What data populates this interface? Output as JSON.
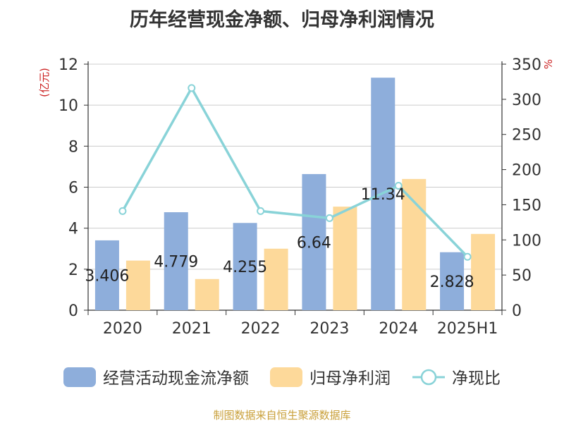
{
  "title": "历年经营现金净额、归母净利润情况",
  "source": "制图数据来自恒生聚源数据库",
  "chart_data": {
    "type": "bar",
    "categories": [
      "2020",
      "2021",
      "2022",
      "2023",
      "2024",
      "2025H1"
    ],
    "y_left": {
      "label": "(亿元)",
      "min": 0,
      "max": 12,
      "ticks": [
        0,
        2,
        4,
        6,
        8,
        10,
        12
      ]
    },
    "y_right": {
      "label": "%",
      "min": 0,
      "max": 350,
      "ticks": [
        0,
        50,
        100,
        150,
        200,
        250,
        300,
        350
      ]
    },
    "grid": true,
    "legend_position": "bottom",
    "series": [
      {
        "name": "经营活动现金流净额",
        "type": "bar",
        "axis": "left",
        "color": "#8eaedb",
        "values": [
          3.406,
          4.779,
          4.255,
          6.64,
          11.34,
          2.828
        ],
        "data_labels": [
          "3.406",
          "4.779",
          "4.255",
          "6.64",
          "11.34",
          "2.828"
        ]
      },
      {
        "name": "归母净利润",
        "type": "bar",
        "axis": "left",
        "color": "#fdd99a",
        "values": [
          2.42,
          1.52,
          3.0,
          5.05,
          6.4,
          3.72
        ]
      },
      {
        "name": "净现比",
        "type": "line",
        "axis": "right",
        "color": "#89d3d8",
        "values": [
          141,
          316,
          141,
          131,
          177,
          76
        ]
      }
    ]
  }
}
